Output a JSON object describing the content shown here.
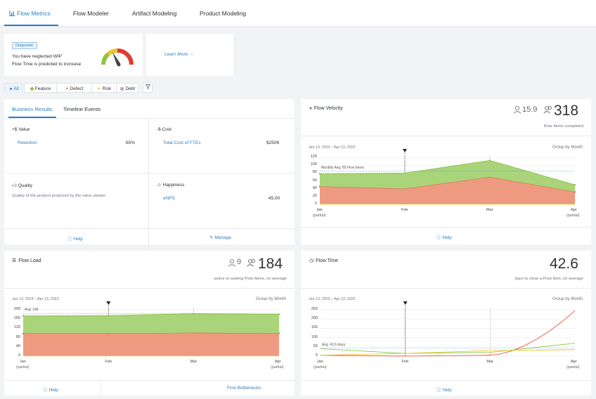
{
  "tabs": [
    {
      "label": "Flow Metrics"
    },
    {
      "label": "Flow Modeler"
    },
    {
      "label": "Artifact Modeling"
    },
    {
      "label": "Product Modeling"
    }
  ],
  "diagnostic": {
    "badge": "Diagnostic",
    "line1": "You have neglected WIP",
    "line2": "Flow Time is predicted to increase",
    "learn_more": "Learn More →"
  },
  "filters": {
    "items": [
      {
        "label": "All",
        "icon": "dot-icon"
      },
      {
        "label": "Feature",
        "icon": "feature-icon"
      },
      {
        "label": "Defect",
        "icon": "defect-icon"
      },
      {
        "label": "Risk",
        "icon": "risk-icon"
      },
      {
        "label": "Debt",
        "icon": "debt-icon"
      }
    ]
  },
  "business": {
    "tab_results": "Business Results",
    "tab_timeline": "Timeline Events",
    "value_title": "+$ Value",
    "value_item": "Retention",
    "value_pct": "65%",
    "cost_title": "-$ Cost",
    "cost_item": "Total Cost of FTEs",
    "cost_value": "$250K",
    "quality_title": "Quality",
    "quality_desc": "Quality of the product produced by the value stream",
    "happiness_title": "Happiness",
    "happiness_item": "eNPS",
    "happiness_value": "45.00",
    "help": "Help",
    "manage": "Manage"
  },
  "velocity": {
    "title": "Flow Velocity",
    "people": "15.9",
    "big": "318",
    "sub": "Flow Items completed",
    "daterange": "Jan 13, 2023 – Apr 13, 2023",
    "group": "Group by Month",
    "avg_label": "Monthly Avg: 85 Flow Items",
    "help": "Help"
  },
  "load": {
    "title": "Flow Load",
    "people": "9",
    "big": "184",
    "sub": "active or waiting Flow Items, on average",
    "daterange": "Jan 13, 2023 – Apr 13, 2023",
    "group": "Group by Month",
    "avg_label": "Avg: 184",
    "help": "Help",
    "bottlenecks": "Find Bottlenecks"
  },
  "time": {
    "title": "Flow Time",
    "big": "42.6",
    "sub": "days to close a Flow Item, on average",
    "daterange": "Jan 13, 2023 – Apr 13, 2023",
    "group": "Group by Month",
    "avg_label": "Avg: 42.6 days",
    "help": "Help"
  },
  "colors": {
    "feature": "#8dc63f",
    "defect": "#e8583a",
    "risk": "#f2c230",
    "debt": "#a07bc4",
    "accent": "#2e7ec6"
  },
  "chart_data": [
    {
      "type": "area",
      "title": "Flow Velocity",
      "x": [
        "Jan",
        "Feb",
        "Mar",
        "Apr"
      ],
      "x_sublabels": [
        "(partial)",
        "",
        "",
        "(partial)"
      ],
      "ylim": [
        0,
        120
      ],
      "yticks": [
        0,
        20,
        40,
        60,
        80,
        100,
        120
      ],
      "stacked": true,
      "series": [
        {
          "name": "Feature",
          "values": [
            32,
            40,
            42,
            18
          ]
        },
        {
          "name": "Defect",
          "values": [
            46,
            40,
            70,
            32
          ]
        },
        {
          "name": "Risk",
          "values": [
            1,
            1,
            1,
            1
          ]
        }
      ],
      "avg_line": 85
    },
    {
      "type": "area",
      "title": "Flow Load",
      "x": [
        "Jan",
        "Feb",
        "Mar",
        "Apr"
      ],
      "x_sublabels": [
        "(partial)",
        "",
        "",
        "(partial)"
      ],
      "ylim": [
        0,
        200
      ],
      "yticks": [
        0,
        40,
        80,
        120,
        160,
        200
      ],
      "stacked": true,
      "series": [
        {
          "name": "Feature",
          "values": [
            76,
            77,
            82,
            81
          ]
        },
        {
          "name": "Defect",
          "values": [
            98,
            98,
            101,
            99
          ]
        },
        {
          "name": "Risk",
          "values": [
            2,
            2,
            2,
            2
          ]
        }
      ],
      "avg_line": 184
    },
    {
      "type": "line",
      "title": "Flow Time",
      "x": [
        "Jan",
        "Feb",
        "Mar",
        "Apr"
      ],
      "x_sublabels": [
        "(partial)",
        "",
        "",
        "(partial)"
      ],
      "ylim": [
        0,
        250
      ],
      "yticks": [
        0,
        50,
        100,
        150,
        200,
        250
      ],
      "series": [
        {
          "name": "Defect",
          "values": [
            5,
            0,
            5,
            245
          ]
        },
        {
          "name": "Feature",
          "values": [
            40,
            15,
            20,
            70
          ]
        },
        {
          "name": "Risk",
          "values": [
            5,
            15,
            30,
            35
          ]
        }
      ],
      "avg_line": 42.6
    }
  ]
}
